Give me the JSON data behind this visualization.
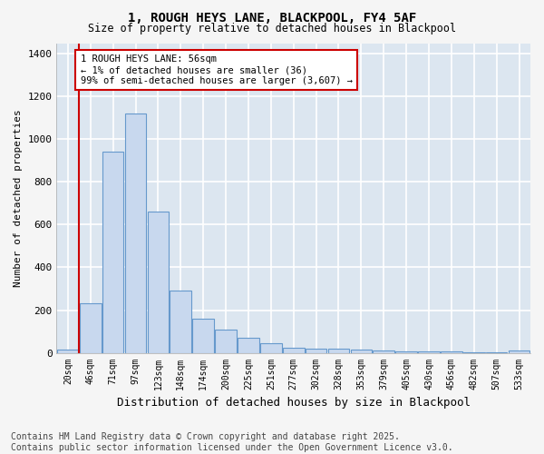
{
  "title": "1, ROUGH HEYS LANE, BLACKPOOL, FY4 5AF",
  "subtitle": "Size of property relative to detached houses in Blackpool",
  "xlabel": "Distribution of detached houses by size in Blackpool",
  "ylabel": "Number of detached properties",
  "bar_color": "#c8d8ee",
  "bar_edge_color": "#6699cc",
  "background_color": "#dce6f0",
  "fig_background_color": "#f5f5f5",
  "grid_color": "#ffffff",
  "vline_color": "#cc0000",
  "annotation_text": "1 ROUGH HEYS LANE: 56sqm\n← 1% of detached houses are smaller (36)\n99% of semi-detached houses are larger (3,607) →",
  "annotation_box_color": "#ffffff",
  "annotation_box_edge": "#cc0000",
  "categories": [
    "20sqm",
    "46sqm",
    "71sqm",
    "97sqm",
    "123sqm",
    "148sqm",
    "174sqm",
    "200sqm",
    "225sqm",
    "251sqm",
    "277sqm",
    "302sqm",
    "328sqm",
    "353sqm",
    "379sqm",
    "405sqm",
    "430sqm",
    "456sqm",
    "482sqm",
    "507sqm",
    "533sqm"
  ],
  "values": [
    15,
    230,
    940,
    1120,
    660,
    290,
    160,
    110,
    70,
    45,
    25,
    20,
    18,
    15,
    12,
    8,
    5,
    5,
    3,
    2,
    10
  ],
  "ylim": [
    0,
    1450
  ],
  "yticks": [
    0,
    200,
    400,
    600,
    800,
    1000,
    1200,
    1400
  ],
  "footnote": "Contains HM Land Registry data © Crown copyright and database right 2025.\nContains public sector information licensed under the Open Government Licence v3.0.",
  "footnote_fontsize": 7,
  "vline_bar_index": 1
}
